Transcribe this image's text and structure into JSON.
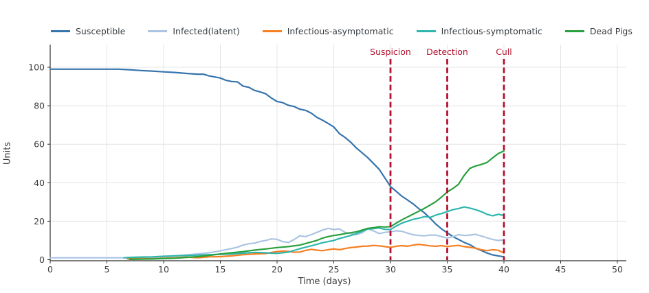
{
  "chart_data": {
    "type": "line",
    "title": "",
    "xlabel": "Time (days)",
    "ylabel": "Units",
    "xlim": [
      0,
      50
    ],
    "ylim": [
      0,
      105
    ],
    "x_ticks": [
      0,
      5,
      10,
      15,
      20,
      25,
      30,
      35,
      40,
      45,
      50
    ],
    "y_ticks": [
      0,
      20,
      40,
      60,
      80,
      100
    ],
    "grid": true,
    "legend_position": "top",
    "annotation_color": "#b2122d",
    "annotations": [
      {
        "label": "Suspicion",
        "x": 30
      },
      {
        "label": "Detection",
        "x": 35
      },
      {
        "label": "Cull",
        "x": 40
      }
    ],
    "series": [
      {
        "name": "Susceptible",
        "color": "#3474ad",
        "points": [
          [
            0,
            99
          ],
          [
            1,
            99
          ],
          [
            2,
            99
          ],
          [
            3,
            99
          ],
          [
            4,
            99
          ],
          [
            5,
            99
          ],
          [
            6,
            99
          ],
          [
            7,
            98.7
          ],
          [
            7.5,
            98.5
          ],
          [
            8,
            98.3
          ],
          [
            9,
            98
          ],
          [
            10,
            97.6
          ],
          [
            11,
            97.3
          ],
          [
            12,
            96.8
          ],
          [
            13,
            96.4
          ],
          [
            13.5,
            96.4
          ],
          [
            14,
            95.5
          ],
          [
            15,
            94.4
          ],
          [
            15.5,
            93.2
          ],
          [
            16,
            92.6
          ],
          [
            16.5,
            92.4
          ],
          [
            17,
            90.2
          ],
          [
            17.5,
            89.6
          ],
          [
            18,
            88
          ],
          [
            18.5,
            87.2
          ],
          [
            19,
            86.2
          ],
          [
            19.5,
            84
          ],
          [
            20,
            82.2
          ],
          [
            20.5,
            81.6
          ],
          [
            21,
            80.2
          ],
          [
            21.5,
            79.6
          ],
          [
            22,
            78.2
          ],
          [
            22.5,
            77.6
          ],
          [
            23,
            76.2
          ],
          [
            23.5,
            74
          ],
          [
            24,
            72.5
          ],
          [
            24.5,
            70.8
          ],
          [
            25,
            69
          ],
          [
            25.5,
            65.5
          ],
          [
            26,
            63.5
          ],
          [
            26.5,
            61
          ],
          [
            27,
            58
          ],
          [
            27.5,
            55.5
          ],
          [
            28,
            53
          ],
          [
            28.5,
            50
          ],
          [
            29,
            47
          ],
          [
            29.5,
            42.5
          ],
          [
            30,
            38
          ],
          [
            30.5,
            35.5
          ],
          [
            31,
            33
          ],
          [
            31.5,
            31
          ],
          [
            32,
            29
          ],
          [
            32.5,
            26.5
          ],
          [
            33,
            24.3
          ],
          [
            33.5,
            21.5
          ],
          [
            34,
            18.5
          ],
          [
            34.5,
            16
          ],
          [
            35,
            14
          ],
          [
            35.5,
            12
          ],
          [
            36,
            10.5
          ],
          [
            36.5,
            9
          ],
          [
            37,
            7.8
          ],
          [
            37.5,
            6
          ],
          [
            38,
            4.8
          ],
          [
            38.5,
            3.5
          ],
          [
            39,
            2.5
          ],
          [
            39.5,
            2
          ],
          [
            40,
            1.5
          ]
        ]
      },
      {
        "name": "Infected(latent)",
        "color": "#aac4e2",
        "points": [
          [
            0,
            1
          ],
          [
            2,
            1
          ],
          [
            4,
            1
          ],
          [
            6,
            1
          ],
          [
            8,
            1
          ],
          [
            9,
            1.2
          ],
          [
            10,
            1.5
          ],
          [
            11,
            2
          ],
          [
            12,
            2.5
          ],
          [
            13,
            3
          ],
          [
            14,
            3.6
          ],
          [
            15,
            4.6
          ],
          [
            16,
            5.8
          ],
          [
            16.5,
            6.5
          ],
          [
            17,
            7.6
          ],
          [
            17.5,
            8.3
          ],
          [
            18,
            8.6
          ],
          [
            18.5,
            9.5
          ],
          [
            19,
            10
          ],
          [
            19.5,
            10.8
          ],
          [
            20,
            10.6
          ],
          [
            20.5,
            9.4
          ],
          [
            21,
            9
          ],
          [
            21.5,
            10.5
          ],
          [
            22,
            12.4
          ],
          [
            22.5,
            12
          ],
          [
            23,
            13
          ],
          [
            23.5,
            14.2
          ],
          [
            24,
            15.4
          ],
          [
            24.5,
            16.3
          ],
          [
            25,
            15.7
          ],
          [
            25.5,
            16
          ],
          [
            26,
            14.2
          ],
          [
            26.5,
            13.6
          ],
          [
            27,
            13
          ],
          [
            27.5,
            14
          ],
          [
            28,
            16
          ],
          [
            28.5,
            15
          ],
          [
            29,
            13.6
          ],
          [
            29.5,
            14.2
          ],
          [
            30,
            14.5
          ],
          [
            30.5,
            15
          ],
          [
            31,
            14.8
          ],
          [
            31.5,
            13.8
          ],
          [
            32,
            13
          ],
          [
            32.5,
            12.6
          ],
          [
            33,
            12.4
          ],
          [
            33.5,
            12.8
          ],
          [
            34,
            12.8
          ],
          [
            34.5,
            12
          ],
          [
            35,
            11.2
          ],
          [
            35.5,
            12
          ],
          [
            36,
            13
          ],
          [
            36.5,
            12.6
          ],
          [
            37,
            12.8
          ],
          [
            37.5,
            13.2
          ],
          [
            38,
            12.3
          ],
          [
            38.5,
            11.4
          ],
          [
            39,
            10.5
          ],
          [
            39.5,
            10
          ],
          [
            40,
            10.3
          ]
        ]
      },
      {
        "name": "Infectious-asymptomatic",
        "color": "#f57e20",
        "points": [
          [
            6.8,
            0.5
          ],
          [
            7,
            0.5
          ],
          [
            8,
            0.6
          ],
          [
            9,
            0.5
          ],
          [
            10,
            0.8
          ],
          [
            11,
            1
          ],
          [
            12,
            1.4
          ],
          [
            13,
            1
          ],
          [
            14,
            1.5
          ],
          [
            15,
            1.6
          ],
          [
            16,
            2
          ],
          [
            17,
            2.6
          ],
          [
            18,
            3
          ],
          [
            19,
            3.2
          ],
          [
            19.5,
            3.8
          ],
          [
            20,
            4.2
          ],
          [
            20.5,
            4.5
          ],
          [
            21,
            4.3
          ],
          [
            21.5,
            3.9
          ],
          [
            22,
            4
          ],
          [
            22.5,
            4.8
          ],
          [
            23,
            5.4
          ],
          [
            23.5,
            5
          ],
          [
            24,
            4.7
          ],
          [
            24.5,
            5.2
          ],
          [
            25,
            5.6
          ],
          [
            25.5,
            5.2
          ],
          [
            26,
            5.8
          ],
          [
            26.5,
            6.3
          ],
          [
            27,
            6.6
          ],
          [
            27.5,
            7
          ],
          [
            28,
            7.1
          ],
          [
            28.5,
            7.4
          ],
          [
            29,
            7.2
          ],
          [
            29.5,
            6.8
          ],
          [
            30,
            6.4
          ],
          [
            30.5,
            7
          ],
          [
            31,
            7.3
          ],
          [
            31.5,
            7
          ],
          [
            32,
            7.6
          ],
          [
            32.5,
            8
          ],
          [
            33,
            7.6
          ],
          [
            33.5,
            7.2
          ],
          [
            34,
            7
          ],
          [
            34.5,
            7.3
          ],
          [
            35,
            6.8
          ],
          [
            35.5,
            7.2
          ],
          [
            36,
            7.4
          ],
          [
            36.5,
            6.8
          ],
          [
            37,
            6.4
          ],
          [
            37.5,
            6
          ],
          [
            38,
            5.2
          ],
          [
            38.5,
            4.7
          ],
          [
            39,
            5.2
          ],
          [
            39.5,
            4.9
          ],
          [
            40,
            3.5
          ]
        ]
      },
      {
        "name": "Infectious-symptomatic",
        "color": "#2db6ac",
        "points": [
          [
            6.5,
            1
          ],
          [
            7,
            1.2
          ],
          [
            8,
            1.4
          ],
          [
            9,
            1.5
          ],
          [
            10,
            1.8
          ],
          [
            11,
            2
          ],
          [
            12,
            2.2
          ],
          [
            13,
            2.4
          ],
          [
            14,
            2.6
          ],
          [
            15,
            2.8
          ],
          [
            16,
            3
          ],
          [
            17,
            3.4
          ],
          [
            18,
            3.8
          ],
          [
            19,
            3.6
          ],
          [
            19.5,
            3.4
          ],
          [
            20,
            3.3
          ],
          [
            20.5,
            3.6
          ],
          [
            21,
            4
          ],
          [
            21.5,
            4.8
          ],
          [
            22,
            5.7
          ],
          [
            22.5,
            6.5
          ],
          [
            23,
            7.2
          ],
          [
            23.5,
            8
          ],
          [
            24,
            8.8
          ],
          [
            24.5,
            9.4
          ],
          [
            25,
            10
          ],
          [
            25.5,
            11
          ],
          [
            26,
            11.8
          ],
          [
            26.5,
            12.6
          ],
          [
            27,
            13.6
          ],
          [
            27.5,
            14.8
          ],
          [
            28,
            16
          ],
          [
            28.5,
            16.2
          ],
          [
            29,
            16.5
          ],
          [
            29.5,
            15.8
          ],
          [
            30,
            15.7
          ],
          [
            30.5,
            17.5
          ],
          [
            31,
            19
          ],
          [
            31.5,
            20
          ],
          [
            32,
            21
          ],
          [
            32.5,
            21.6
          ],
          [
            33,
            22.4
          ],
          [
            33.5,
            22
          ],
          [
            34,
            23.2
          ],
          [
            34.5,
            24
          ],
          [
            35,
            25
          ],
          [
            35.5,
            26
          ],
          [
            36,
            26.6
          ],
          [
            36.5,
            27.4
          ],
          [
            37,
            26.8
          ],
          [
            37.5,
            26
          ],
          [
            38,
            25
          ],
          [
            38.5,
            23.6
          ],
          [
            39,
            22.8
          ],
          [
            39.5,
            23.6
          ],
          [
            40,
            23
          ]
        ]
      },
      {
        "name": "Dead Pigs",
        "color": "#28a03c",
        "points": [
          [
            7,
            0.2
          ],
          [
            8,
            0.3
          ],
          [
            9,
            0.4
          ],
          [
            10,
            0.6
          ],
          [
            11,
            0.8
          ],
          [
            12,
            1.2
          ],
          [
            13,
            1.6
          ],
          [
            14,
            2.2
          ],
          [
            15,
            3
          ],
          [
            16,
            3.6
          ],
          [
            17,
            4.2
          ],
          [
            18,
            5
          ],
          [
            19,
            5.6
          ],
          [
            20,
            6.3
          ],
          [
            21,
            6.8
          ],
          [
            22,
            7.6
          ],
          [
            22.5,
            8.4
          ],
          [
            23,
            9.2
          ],
          [
            23.5,
            10
          ],
          [
            24,
            11.2
          ],
          [
            24.5,
            12
          ],
          [
            25,
            12.6
          ],
          [
            25.5,
            13
          ],
          [
            26,
            13.6
          ],
          [
            26.5,
            14
          ],
          [
            27,
            14.5
          ],
          [
            27.5,
            15.4
          ],
          [
            28,
            16.3
          ],
          [
            28.5,
            16.6
          ],
          [
            29,
            17.2
          ],
          [
            29.5,
            17
          ],
          [
            30,
            17.2
          ],
          [
            30.5,
            19
          ],
          [
            31,
            20.7
          ],
          [
            31.5,
            22.2
          ],
          [
            32,
            23.7
          ],
          [
            32.5,
            25.2
          ],
          [
            33,
            26.7
          ],
          [
            33.5,
            28.4
          ],
          [
            34,
            30.2
          ],
          [
            34.5,
            32.6
          ],
          [
            35,
            35.2
          ],
          [
            35.5,
            37
          ],
          [
            36,
            39.2
          ],
          [
            36.5,
            43.9
          ],
          [
            37,
            47.5
          ],
          [
            37.5,
            48.7
          ],
          [
            38,
            49.5
          ],
          [
            38.5,
            50.5
          ],
          [
            39,
            52.9
          ],
          [
            39.5,
            55.2
          ],
          [
            40,
            56.5
          ]
        ]
      }
    ]
  }
}
